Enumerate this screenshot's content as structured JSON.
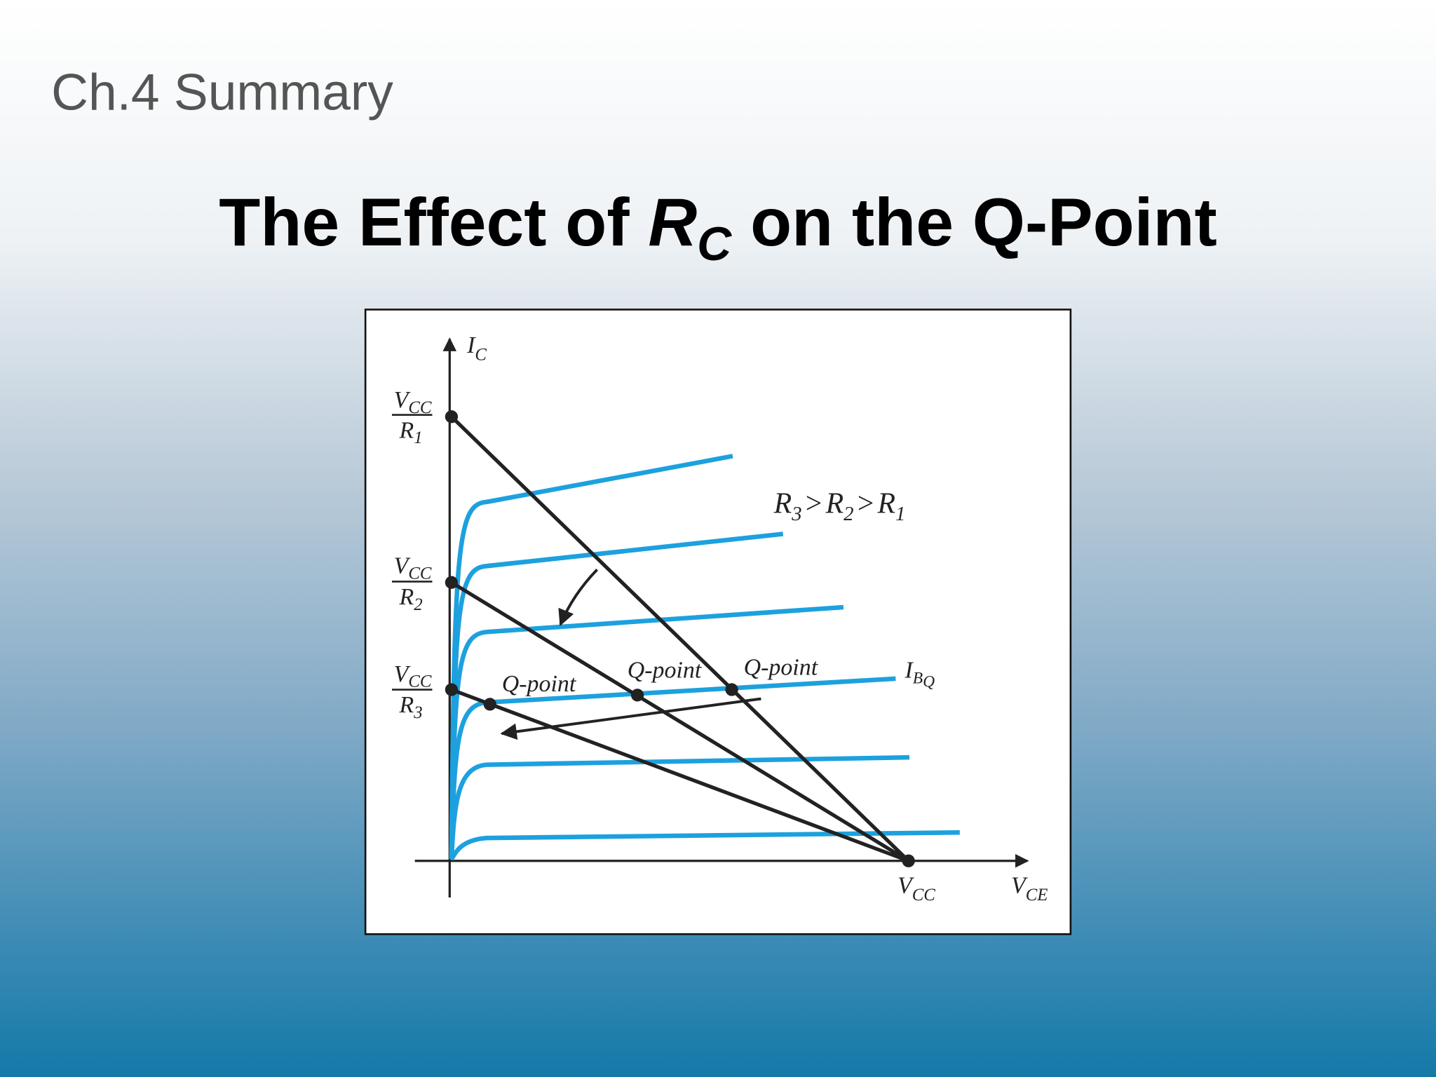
{
  "header": {
    "section": "Ch.4 Summary"
  },
  "title": {
    "before": "The Effect of ",
    "symbol": "R",
    "subscript": "C",
    "after": " on the Q-Point"
  },
  "diagram": {
    "y_axis": {
      "symbol": "I",
      "subscript": "C"
    },
    "x_axis": {
      "symbol": "V",
      "subscript": "CE"
    },
    "vcc": {
      "symbol": "V",
      "subscript": "CC"
    },
    "intercepts": [
      {
        "numerator": {
          "symbol": "V",
          "subscript": "CC"
        },
        "denominator": {
          "symbol": "R",
          "subscript": "1"
        }
      },
      {
        "numerator": {
          "symbol": "V",
          "subscript": "CC"
        },
        "denominator": {
          "symbol": "R",
          "subscript": "2"
        }
      },
      {
        "numerator": {
          "symbol": "V",
          "subscript": "CC"
        },
        "denominator": {
          "symbol": "R",
          "subscript": "3"
        }
      }
    ],
    "relation": {
      "terms": [
        {
          "symbol": "R",
          "subscript": "3"
        },
        {
          "symbol": "R",
          "subscript": "2"
        },
        {
          "symbol": "R",
          "subscript": "1"
        }
      ],
      "operator": ">"
    },
    "q_points": [
      "Q-point",
      "Q-point",
      "Q-point"
    ],
    "ibq": {
      "symbol": "I",
      "subscript": "B",
      "subsubscript": "Q"
    }
  }
}
